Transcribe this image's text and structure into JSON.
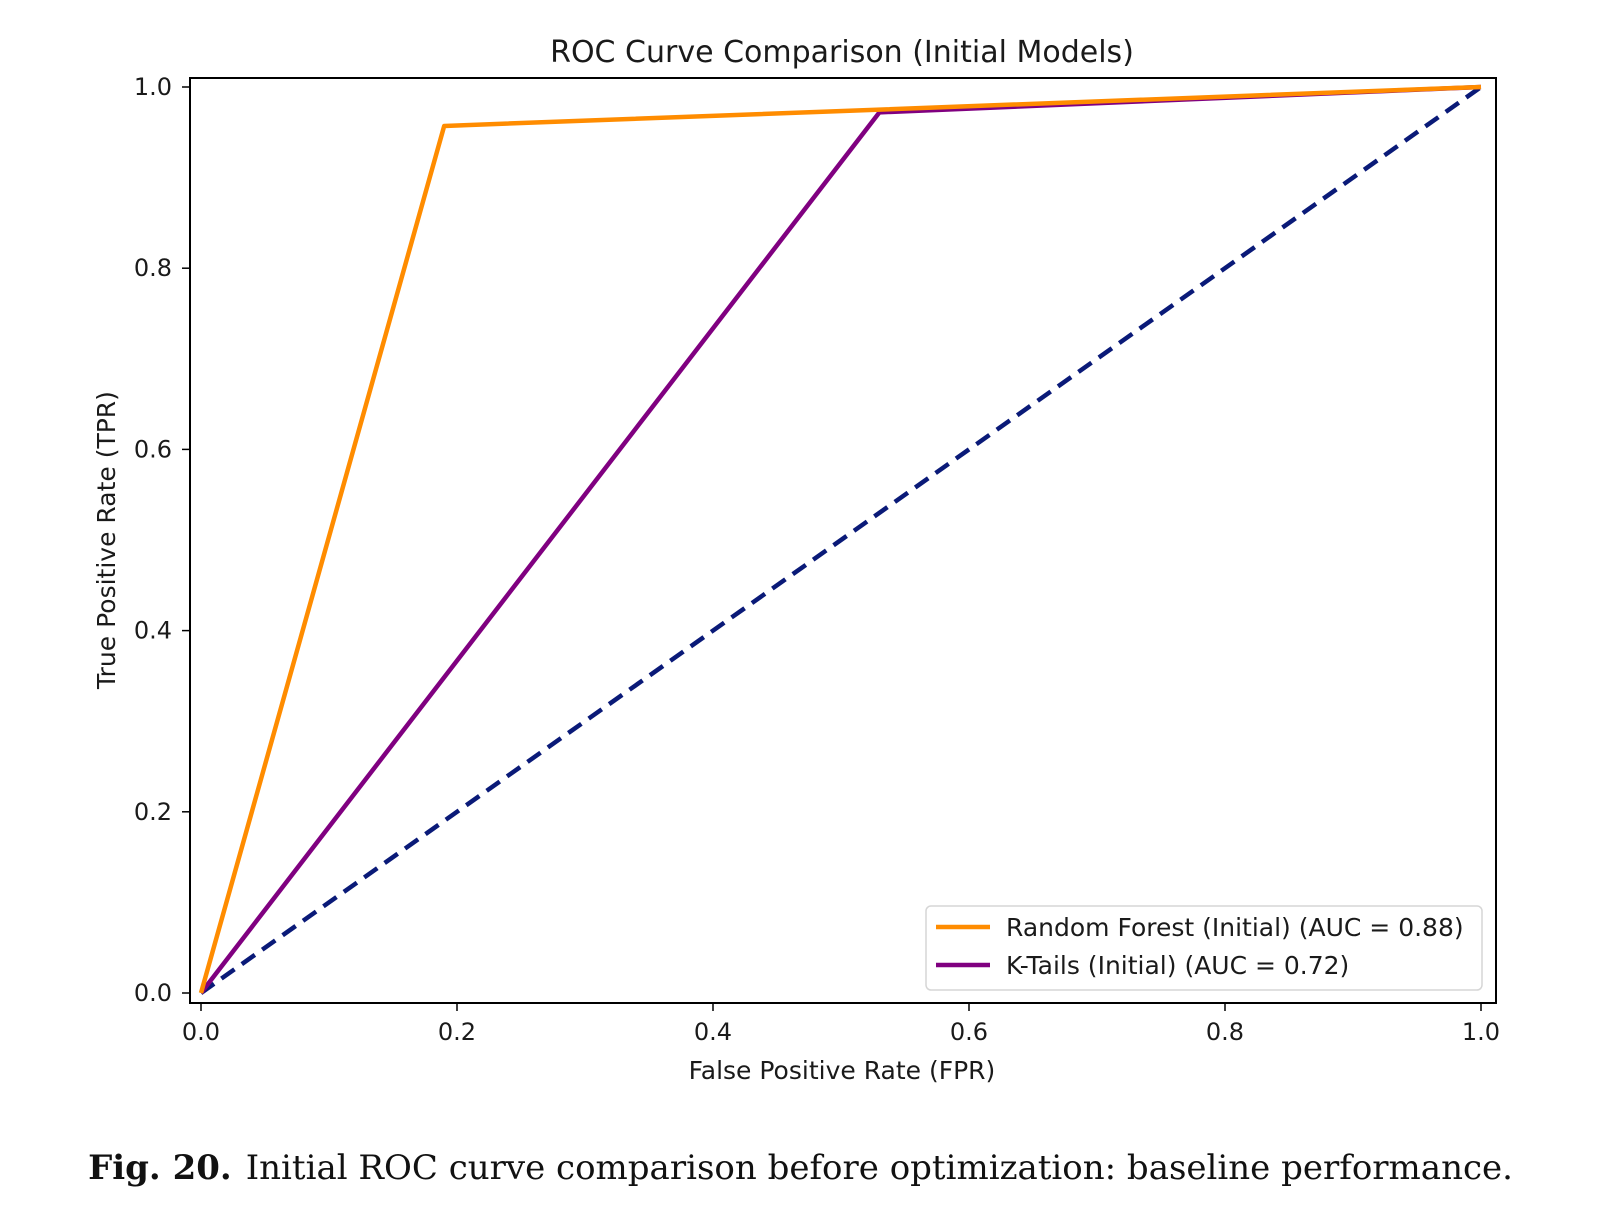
{
  "chart_data": {
    "type": "line",
    "title": "ROC Curve Comparison (Initial Models)",
    "xlabel": "False Positive Rate (FPR)",
    "ylabel": "True Positive Rate (TPR)",
    "xlim": [
      0.0,
      1.0
    ],
    "ylim": [
      0.0,
      1.0
    ],
    "x_ticks": [
      "0.0",
      "0.2",
      "0.4",
      "0.6",
      "0.8",
      "1.0"
    ],
    "y_ticks": [
      "0.0",
      "0.2",
      "0.4",
      "0.6",
      "0.8",
      "1.0"
    ],
    "grid": false,
    "legend_position": "lower-right",
    "series": [
      {
        "name": "Random Forest (Initial) (AUC = 0.88)",
        "color": "#ff8c00",
        "style": "solid",
        "x": [
          0.0,
          0.19,
          1.0
        ],
        "y": [
          0.0,
          0.957,
          1.0
        ]
      },
      {
        "name": "K-Tails (Initial) (AUC = 0.72)",
        "color": "#800080",
        "style": "solid",
        "x": [
          0.0,
          0.53,
          1.0
        ],
        "y": [
          0.0,
          0.972,
          1.0
        ]
      },
      {
        "color": "#0a1a78",
        "style": "dashed",
        "x": [
          0.0,
          1.0
        ],
        "y": [
          0.0,
          1.0
        ]
      }
    ]
  },
  "caption": {
    "label": "Fig. 20.",
    "text": "Initial ROC curve comparison before optimization: baseline performance."
  }
}
